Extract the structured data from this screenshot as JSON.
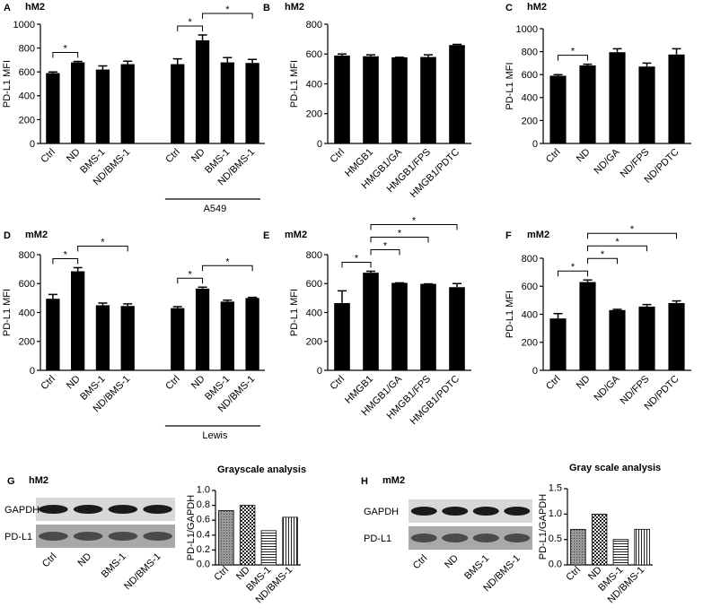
{
  "chart_data": [
    {
      "type": "bar",
      "panel": "A",
      "title": "hM2",
      "ylabel": "PD-L1 MFI",
      "color": "#000000",
      "categories": [
        "Ctrl",
        "ND",
        "BMS-1",
        "ND/BMS-1",
        "Ctrl",
        "ND",
        "BMS-1",
        "ND/BMS-1"
      ],
      "values": [
        590,
        680,
        620,
        665,
        665,
        865,
        680,
        675
      ],
      "errors": [
        10,
        8,
        30,
        25,
        45,
        45,
        40,
        30
      ],
      "group_label": "A549",
      "ylim": [
        0,
        1000
      ],
      "yticks": [
        0,
        200,
        400,
        600,
        800,
        1000
      ],
      "significance": [
        {
          "pair": [
            0,
            1
          ],
          "label": "*"
        },
        {
          "pair": [
            4,
            5
          ],
          "label": "*"
        },
        {
          "pair": [
            5,
            7
          ],
          "label": "*"
        }
      ]
    },
    {
      "type": "bar",
      "panel": "B",
      "title": "hM2",
      "ylabel": "PD-L1 MFI",
      "color": "#000000",
      "categories": [
        "Ctrl",
        "HMGB1",
        "HMGB1/GA",
        "HMGB1/FPS",
        "HMGB1/PDTC"
      ],
      "values": [
        590,
        585,
        578,
        580,
        660
      ],
      "errors": [
        10,
        10,
        0,
        15,
        5
      ],
      "ylim": [
        0,
        800
      ],
      "yticks": [
        0,
        200,
        400,
        600,
        800
      ],
      "significance": []
    },
    {
      "type": "bar",
      "panel": "C",
      "title": "hM2",
      "ylabel": "PD-L1 MFI",
      "color": "#000000",
      "categories": [
        "Ctrl",
        "ND",
        "ND/GA",
        "ND/FPS",
        "ND/PDTC"
      ],
      "values": [
        590,
        680,
        795,
        670,
        775
      ],
      "errors": [
        10,
        10,
        30,
        30,
        50
      ],
      "ylim": [
        0,
        1000
      ],
      "yticks": [
        0,
        200,
        400,
        600,
        800,
        1000
      ],
      "significance": [
        {
          "pair": [
            0,
            1
          ],
          "label": "*"
        }
      ]
    },
    {
      "type": "bar",
      "panel": "D",
      "title": "mM2",
      "ylabel": "PD-L1 MFI",
      "color": "#000000",
      "categories": [
        "Ctrl",
        "ND",
        "BMS-1",
        "ND/BMS-1",
        "Ctrl",
        "ND",
        "BMS-1",
        "ND/BMS-1"
      ],
      "values": [
        495,
        685,
        450,
        445,
        430,
        565,
        475,
        500
      ],
      "errors": [
        30,
        25,
        15,
        15,
        10,
        10,
        10,
        5
      ],
      "group_label": "Lewis",
      "ylim": [
        0,
        800
      ],
      "yticks": [
        0,
        200,
        400,
        600,
        800
      ],
      "significance": [
        {
          "pair": [
            0,
            1
          ],
          "label": "*"
        },
        {
          "pair": [
            1,
            3
          ],
          "label": "*"
        },
        {
          "pair": [
            4,
            5
          ],
          "label": "*"
        },
        {
          "pair": [
            5,
            7
          ],
          "label": "*"
        }
      ]
    },
    {
      "type": "bar",
      "panel": "E",
      "title": "mM2",
      "ylabel": "PD-L1 MFI",
      "color": "#000000",
      "categories": [
        "Ctrl",
        "HMGB1",
        "HMGB1/GA",
        "HMGB1/FPS",
        "HMGB1/PDTC"
      ],
      "values": [
        465,
        675,
        605,
        598,
        575
      ],
      "errors": [
        85,
        10,
        0,
        0,
        25
      ],
      "ylim": [
        0,
        800
      ],
      "yticks": [
        0,
        200,
        400,
        600,
        800
      ],
      "significance": [
        {
          "pair": [
            0,
            1
          ],
          "label": "*"
        },
        {
          "pair": [
            1,
            2
          ],
          "label": "*"
        },
        {
          "pair": [
            1,
            3
          ],
          "label": "*"
        },
        {
          "pair": [
            1,
            4
          ],
          "label": "*"
        }
      ]
    },
    {
      "type": "bar",
      "panel": "F",
      "title": "mM2",
      "ylabel": "PD-L1 MFI",
      "color": "#000000",
      "categories": [
        "Ctrl",
        "ND",
        "ND/GA",
        "ND/FPS",
        "ND/PDTC"
      ],
      "values": [
        370,
        630,
        430,
        455,
        480
      ],
      "errors": [
        35,
        15,
        5,
        15,
        15
      ],
      "ylim": [
        0,
        800
      ],
      "yticks": [
        0,
        200,
        400,
        600,
        800
      ],
      "significance": [
        {
          "pair": [
            0,
            1
          ],
          "label": "*"
        },
        {
          "pair": [
            1,
            2
          ],
          "label": "*"
        },
        {
          "pair": [
            1,
            3
          ],
          "label": "*"
        },
        {
          "pair": [
            1,
            4
          ],
          "label": "*"
        }
      ]
    },
    {
      "type": "bar",
      "panel": "G",
      "title": "hM2",
      "chart_title": "Grayscale analysis",
      "ylabel": "PD-L1/GAPDH",
      "blot_labels": [
        "GAPDH",
        "PD-L1"
      ],
      "patterns": [
        "dots",
        "checker",
        "horizontal",
        "vertical"
      ],
      "categories": [
        "Ctrl",
        "ND",
        "BMS-1",
        "ND/BMS-1"
      ],
      "values": [
        0.73,
        0.8,
        0.46,
        0.64
      ],
      "ylim": [
        0,
        1
      ],
      "yticks": [
        {
          "value": 0,
          "label": "0.0"
        },
        0.2,
        0.4,
        0.6,
        0.8,
        {
          "value": 1,
          "label": "1.0"
        }
      ],
      "significance": []
    },
    {
      "type": "bar",
      "panel": "H",
      "title": "mM2",
      "chart_title": "Gray scale analysis",
      "ylabel": "PD-L1/GAPDH",
      "blot_labels": [
        "GAPDH",
        "PD-L1"
      ],
      "patterns": [
        "dots",
        "checker",
        "horizontal",
        "vertical"
      ],
      "categories": [
        "Ctrl",
        "ND",
        "BMS-1",
        "ND/BMS-1"
      ],
      "values": [
        0.7,
        1.0,
        0.5,
        0.7
      ],
      "ylim": [
        0,
        1.5
      ],
      "yticks": [
        {
          "value": 0,
          "label": "0.0"
        },
        0.5,
        {
          "value": 1,
          "label": "1.0"
        },
        1.5
      ],
      "significance": []
    }
  ]
}
